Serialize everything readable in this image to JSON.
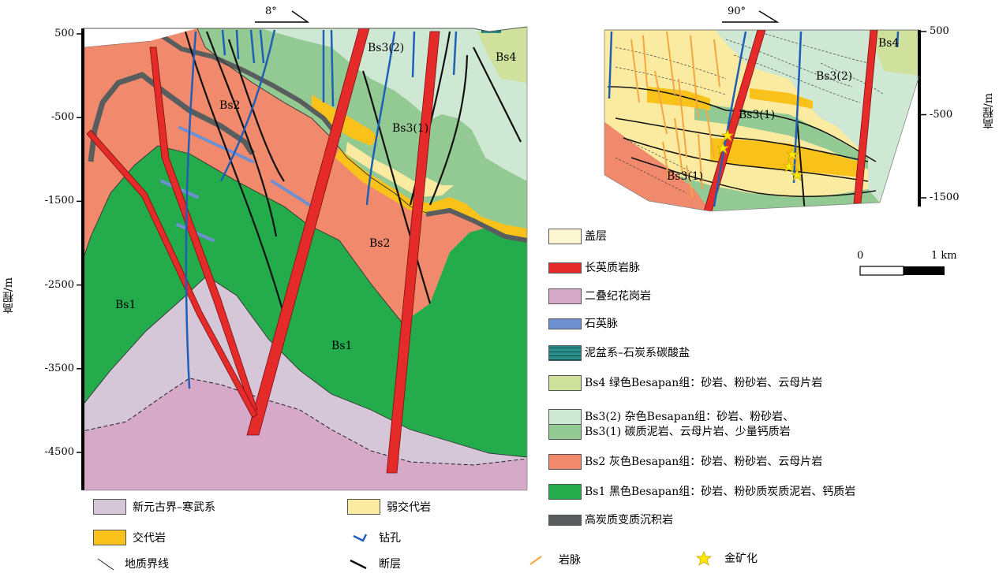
{
  "left_section": {
    "strike_label": "8°",
    "y_axis_title": "高程/m",
    "y_ticks": [
      {
        "value": 500,
        "label": "500"
      },
      {
        "value": -500,
        "label": "-500"
      },
      {
        "value": -1500,
        "label": "-1500"
      },
      {
        "value": -2500,
        "label": "-2500"
      },
      {
        "value": -3500,
        "label": "-3500"
      },
      {
        "value": -4500,
        "label": "-4500"
      }
    ],
    "unit_labels": [
      "Bs2",
      "Bs3(2)",
      "Bs4",
      "Bs3(1)",
      "Bs2",
      "Bs1",
      "Bs1"
    ]
  },
  "right_section": {
    "strike_label": "90°",
    "y_axis_title": "高程/m",
    "y_ticks": [
      {
        "value": 500,
        "label": "500"
      },
      {
        "value": -500,
        "label": "-500"
      },
      {
        "value": -1500,
        "label": "-1500"
      }
    ],
    "unit_labels": [
      "Bs4",
      "Bs3(2)",
      "Bs3(1)",
      "Bs3(1)"
    ]
  },
  "scale_bar": {
    "start": "0",
    "end": "1 km"
  },
  "legend_right": [
    {
      "key": "cover",
      "label": "盖层",
      "color": "#fdf6d2"
    },
    {
      "key": "felsic",
      "label": "长英质岩脉",
      "color": "#e52a2a"
    },
    {
      "key": "granite",
      "label": "二叠纪花岗岩",
      "color": "#d6a9c9"
    },
    {
      "key": "quartz",
      "label": "石英脉",
      "color": "#6e8fd0"
    },
    {
      "key": "carbonate",
      "label": "泥盆系–石炭系碳酸盐",
      "color": "#2a8f8a"
    },
    {
      "key": "bs4",
      "label": "Bs4   绿色Besapan组：砂岩、粉砂岩、云母片岩",
      "color": "#cfe19d"
    },
    {
      "key": "bs32",
      "label": "Bs3(2)    杂色Besapan组：砂岩、粉砂岩、",
      "color": "#cfe8d3"
    },
    {
      "key": "bs31",
      "label": "Bs3(1)    碳质泥岩、云母片岩、少量钙质岩",
      "color": "#93c993"
    },
    {
      "key": "bs2",
      "label": "Bs2  灰色Besapan组：砂岩、粉砂岩、云母片岩",
      "color": "#f18a6c"
    },
    {
      "key": "bs1",
      "label": "Bs1 黑色Besapan组：砂岩、粉砂质炭质泥岩、钙质岩",
      "color": "#23ab4c"
    },
    {
      "key": "carbon",
      "label": "高炭质变质沉积岩",
      "color": "#5a5d5d"
    }
  ],
  "legend_bottom": [
    {
      "key": "neo",
      "label": "新元古界–寒武系",
      "color": "#d5c7d8"
    },
    {
      "key": "weak",
      "label": "弱交代岩",
      "color": "#fbeba0"
    },
    {
      "key": "meta",
      "label": "交代岩",
      "color": "#f8c21a"
    },
    {
      "key": "drill",
      "label": "钻孔",
      "color": "#1f5fb5"
    },
    {
      "key": "boundary",
      "label": "地质界线"
    },
    {
      "key": "fault",
      "label": "断层"
    },
    {
      "key": "dyke",
      "label": "岩脉",
      "color": "#f4a641"
    },
    {
      "key": "gold",
      "label": "金矿化",
      "color": "#ffe900"
    }
  ]
}
